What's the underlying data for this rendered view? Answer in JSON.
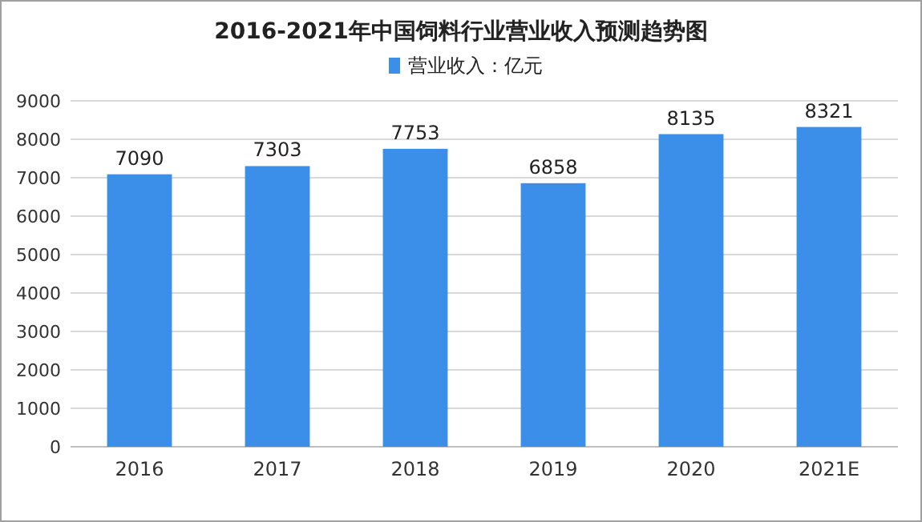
{
  "chart_data": {
    "type": "bar",
    "title": "2016-2021年中国饲料行业营业收入预测趋势图",
    "categories": [
      "2016",
      "2017",
      "2018",
      "2019",
      "2020",
      "2021E"
    ],
    "series": [
      {
        "name": "营业收入：亿元",
        "color": "#3b8fe8",
        "values": [
          7090,
          7303,
          7753,
          6858,
          8135,
          8321
        ]
      }
    ],
    "ylim": [
      0,
      9000
    ],
    "yticks": [
      0,
      1000,
      2000,
      3000,
      4000,
      5000,
      6000,
      7000,
      8000,
      9000
    ],
    "grid": "y",
    "legend": "top",
    "data_labels": true
  }
}
